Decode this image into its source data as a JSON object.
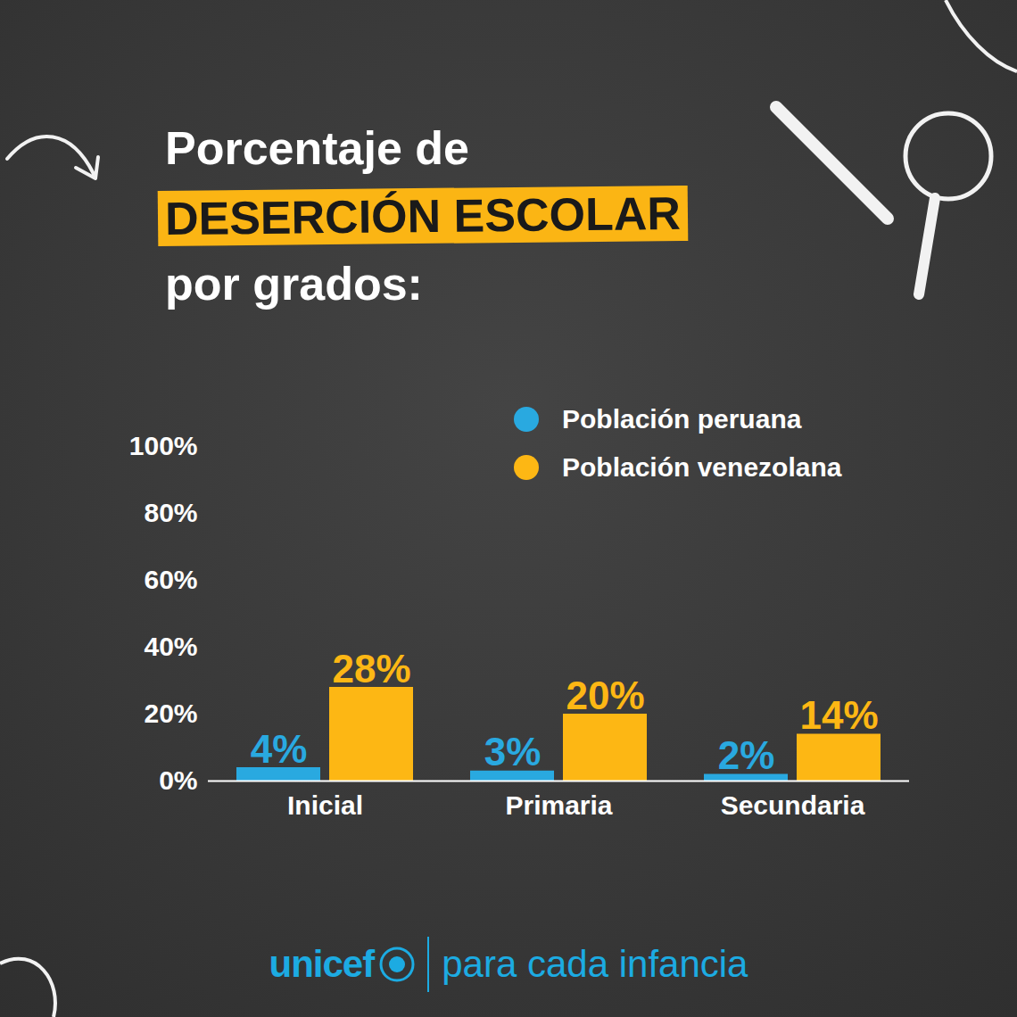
{
  "chart_data": {
    "type": "bar",
    "title": "Porcentaje de DESERCIÓN ESCOLAR por grados:",
    "categories": [
      "Inicial",
      "Primaria",
      "Secundaria"
    ],
    "series": [
      {
        "name": "Población peruana",
        "color": "#29a9e0",
        "values": [
          4,
          3,
          2
        ],
        "value_labels": [
          "4%",
          "3%",
          "2%"
        ]
      },
      {
        "name": "Población venezolana",
        "color": "#fdb714",
        "values": [
          28,
          20,
          14
        ],
        "value_labels": [
          "28%",
          "20%",
          "14%"
        ]
      }
    ],
    "ylim": [
      0,
      100
    ],
    "yticks": [
      {
        "value": 0,
        "label": "0%"
      },
      {
        "value": 20,
        "label": "20%"
      },
      {
        "value": 40,
        "label": "40%"
      },
      {
        "value": 60,
        "label": "60%"
      },
      {
        "value": 80,
        "label": "80%"
      },
      {
        "value": 100,
        "label": "100%"
      }
    ],
    "grid": false,
    "legend": "top-right",
    "data_labels": true,
    "annotations": [
      "unicef",
      "para cada infancia"
    ]
  }
}
